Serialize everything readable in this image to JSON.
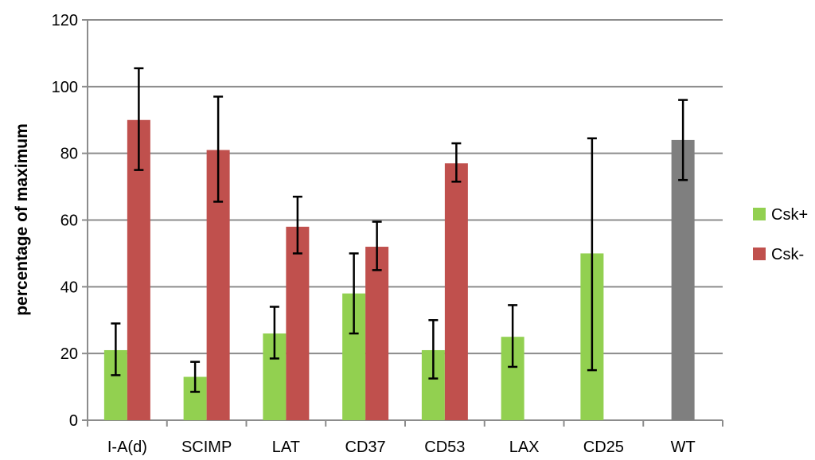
{
  "chart_data": {
    "type": "bar",
    "categories": [
      "I-A(d)",
      "SCIMP",
      "LAT",
      "CD37",
      "CD53",
      "LAX",
      "CD25",
      "WT"
    ],
    "ylabel": "percentage of maximum",
    "xlabel": "",
    "ylim": [
      0,
      120
    ],
    "yticks": [
      0,
      20,
      40,
      60,
      80,
      100,
      120
    ],
    "grid": true,
    "legend_position": "right",
    "series": [
      {
        "name": "Csk+",
        "color": "#92d050",
        "values": [
          21,
          13,
          26,
          38,
          21,
          25,
          50,
          null
        ],
        "err_low": [
          13.5,
          8.5,
          18.5,
          26,
          12.5,
          16,
          15,
          null
        ],
        "err_high": [
          29,
          17.5,
          34,
          50,
          30,
          34.5,
          84.5,
          null
        ]
      },
      {
        "name": "Csk-",
        "color": "#c0504d",
        "values": [
          90,
          81,
          58,
          52,
          77,
          null,
          null,
          null
        ],
        "err_low": [
          75,
          65.5,
          50,
          45,
          71.5,
          null,
          null,
          null
        ],
        "err_high": [
          105.5,
          97,
          67,
          59.5,
          83,
          null,
          null,
          null
        ]
      },
      {
        "name": "",
        "color": "#7f7f7f",
        "values": [
          null,
          null,
          null,
          null,
          null,
          null,
          null,
          84
        ],
        "err_low": [
          null,
          null,
          null,
          null,
          null,
          null,
          null,
          72
        ],
        "err_high": [
          null,
          null,
          null,
          null,
          null,
          null,
          null,
          96
        ]
      }
    ]
  }
}
